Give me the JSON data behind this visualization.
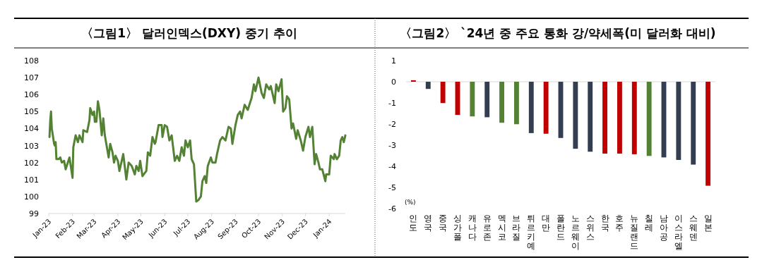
{
  "chart_data": [
    {
      "type": "line",
      "title": "〈그림1〉 달러인덱스(DXY) 중기 추이",
      "series": [
        {
          "color": "#548235",
          "x": [
            "2023-01-02",
            "2023-01-03",
            "2023-01-04",
            "2023-01-05",
            "2023-01-08",
            "2023-01-09",
            "2023-01-10",
            "2023-01-11",
            "2023-01-14",
            "2023-01-16",
            "2023-01-18",
            "2023-01-21",
            "2023-01-23",
            "2023-01-28",
            "2023-02-01",
            "2023-02-02",
            "2023-02-05",
            "2023-02-08",
            "2023-02-10",
            "2023-02-14",
            "2023-02-15",
            "2023-02-20",
            "2023-02-23",
            "2023-02-24",
            "2023-02-27",
            "2023-03-01",
            "2023-03-02",
            "2023-03-04",
            "2023-03-06",
            "2023-03-08",
            "2023-03-11",
            "2023-03-13",
            "2023-03-15",
            "2023-03-20",
            "2023-03-22",
            "2023-03-25",
            "2023-03-27",
            "2023-03-29",
            "2023-04-01",
            "2023-04-03",
            "2023-04-08",
            "2023-04-12",
            "2023-04-15",
            "2023-04-19",
            "2023-04-23",
            "2023-04-25",
            "2023-04-28",
            "2023-04-30",
            "2023-05-03",
            "2023-05-08",
            "2023-05-10",
            "2023-05-13",
            "2023-05-16",
            "2023-05-19",
            "2023-05-20",
            "2023-05-24",
            "2023-05-28",
            "2023-05-29",
            "2023-06-01",
            "2023-06-04",
            "2023-06-07",
            "2023-06-10",
            "2023-06-14",
            "2023-06-17",
            "2023-06-20",
            "2023-06-23",
            "2023-06-26",
            "2023-06-28",
            "2023-07-01",
            "2023-07-04",
            "2023-07-06",
            "2023-07-09",
            "2023-07-12",
            "2023-07-15",
            "2023-07-18",
            "2023-07-20",
            "2023-07-23",
            "2023-07-25",
            "2023-07-27",
            "2023-07-31",
            "2023-08-02",
            "2023-08-06",
            "2023-08-08",
            "2023-08-12",
            "2023-08-15",
            "2023-08-19",
            "2023-08-23",
            "2023-08-26",
            "2023-08-28",
            "2023-09-01",
            "2023-09-04",
            "2023-09-07",
            "2023-09-09",
            "2023-09-13",
            "2023-09-17",
            "2023-09-22",
            "2023-09-25",
            "2023-09-27",
            "2023-10-01",
            "2023-10-05",
            "2023-10-08",
            "2023-10-11",
            "2023-10-15",
            "2023-10-17",
            "2023-10-22",
            "2023-10-24",
            "2023-10-27",
            "2023-10-31",
            "2023-11-02",
            "2023-11-05",
            "2023-11-07",
            "2023-11-10",
            "2023-11-13",
            "2023-11-15",
            "2023-11-19",
            "2023-11-21",
            "2023-11-25",
            "2023-11-28",
            "2023-12-01",
            "2023-12-05",
            "2023-12-07",
            "2023-12-10",
            "2023-12-13",
            "2023-12-15",
            "2023-12-18",
            "2023-12-20",
            "2023-12-23",
            "2023-12-27",
            "2023-12-28",
            "2024-01-01",
            "2024-01-03",
            "2024-01-07",
            "2024-01-08",
            "2024-01-11",
            "2024-01-14",
            "2024-01-16",
            "2024-01-18",
            "2024-01-20",
            "2024-01-22"
          ],
          "values": [
            103.5,
            104.5,
            105.0,
            104.0,
            103.1,
            103.0,
            103.2,
            102.2,
            102.2,
            102.3,
            102.0,
            102.1,
            101.6,
            102.3,
            101.1,
            102.9,
            103.6,
            103.2,
            103.6,
            103.2,
            103.9,
            103.8,
            104.5,
            105.2,
            104.8,
            105.0,
            104.4,
            104.4,
            105.6,
            105.1,
            103.6,
            104.6,
            103.6,
            102.3,
            103.1,
            102.6,
            102.0,
            102.4,
            102.1,
            101.5,
            102.5,
            101.0,
            102.0,
            101.8,
            101.3,
            101.8,
            101.5,
            102.1,
            101.2,
            101.5,
            102.6,
            102.4,
            103.5,
            103.1,
            103.2,
            104.2,
            104.2,
            103.5,
            104.2,
            104.1,
            103.3,
            103.6,
            102.1,
            102.4,
            102.1,
            102.9,
            102.4,
            103.3,
            102.9,
            103.3,
            102.2,
            101.9,
            99.7,
            99.8,
            100.0,
            100.9,
            101.2,
            100.8,
            101.8,
            102.3,
            102.0,
            102.0,
            102.5,
            103.3,
            103.5,
            103.3,
            104.1,
            104.0,
            103.1,
            104.2,
            104.8,
            105.0,
            104.6,
            105.4,
            105.1,
            105.8,
            106.6,
            106.2,
            107.0,
            106.1,
            105.8,
            106.6,
            106.3,
            106.5,
            105.5,
            106.6,
            106.2,
            106.9,
            105.0,
            105.2,
            105.9,
            105.7,
            104.0,
            104.3,
            103.4,
            103.9,
            103.3,
            102.7,
            103.5,
            104.1,
            103.5,
            104.1,
            101.9,
            102.5,
            102.0,
            101.6,
            101.6,
            100.9,
            101.3,
            101.3,
            102.4,
            102.2,
            102.5,
            102.2,
            102.4,
            103.3,
            103.5,
            103.2,
            103.6
          ]
        }
      ],
      "xlim": [
        "2023-01-01",
        "2024-01-22"
      ],
      "xticks": [
        {
          "value": "2023-01-01",
          "label": "Jan-23"
        },
        {
          "value": "2023-02-01",
          "label": "Feb-23"
        },
        {
          "value": "2023-03-01",
          "label": "Mar-23"
        },
        {
          "value": "2023-04-01",
          "label": "Apr-23"
        },
        {
          "value": "2023-05-01",
          "label": "May-23"
        },
        {
          "value": "2023-06-01",
          "label": "Jun-23"
        },
        {
          "value": "2023-07-01",
          "label": "Jul-23"
        },
        {
          "value": "2023-08-01",
          "label": "Aug-23"
        },
        {
          "value": "2023-09-01",
          "label": "Sep-23"
        },
        {
          "value": "2023-10-01",
          "label": "Oct-23"
        },
        {
          "value": "2023-11-01",
          "label": "Nov-23"
        },
        {
          "value": "2023-12-01",
          "label": "Dec-23"
        },
        {
          "value": "2024-01-01",
          "label": "Jan-24"
        }
      ],
      "ylim": [
        99,
        108
      ],
      "yticks": [
        99,
        100,
        101,
        102,
        103,
        104,
        105,
        106,
        107,
        108
      ],
      "marker": "none",
      "line_style": "solid"
    },
    {
      "type": "bar",
      "title": "〈그림2〉 `24년 중 주요 통화 강/약세폭(미 달러화 대비)",
      "ylabel": "(%)",
      "categories": [
        "인도",
        "영국",
        "중국",
        "싱가폴",
        "캐나다",
        "유로존",
        "멕시코",
        "브라질",
        "튀르키예",
        "대만",
        "폴란드",
        "노르웨이",
        "스위스",
        "한국",
        "호주",
        "뉴질랜드",
        "칠레",
        "남아공",
        "이스라엘",
        "스웨덴",
        "일본"
      ],
      "values": [
        0.07,
        -0.34,
        -1.01,
        -1.57,
        -1.64,
        -1.68,
        -1.94,
        -2.01,
        -2.43,
        -2.46,
        -2.66,
        -3.17,
        -3.31,
        -3.4,
        -3.4,
        -3.43,
        -3.51,
        -3.58,
        -3.7,
        -3.92,
        -4.92
      ],
      "colors": [
        "#c00000",
        "#333f50",
        "#c00000",
        "#c00000",
        "#548235",
        "#333f50",
        "#548235",
        "#548235",
        "#333f50",
        "#c00000",
        "#333f50",
        "#333f50",
        "#333f50",
        "#c00000",
        "#c00000",
        "#c00000",
        "#548235",
        "#333f50",
        "#333f50",
        "#333f50",
        "#c00000"
      ],
      "ylim": [
        -6,
        1
      ],
      "yticks": [
        -6,
        -5,
        -4,
        -3,
        -2,
        -1,
        0,
        1
      ]
    }
  ]
}
